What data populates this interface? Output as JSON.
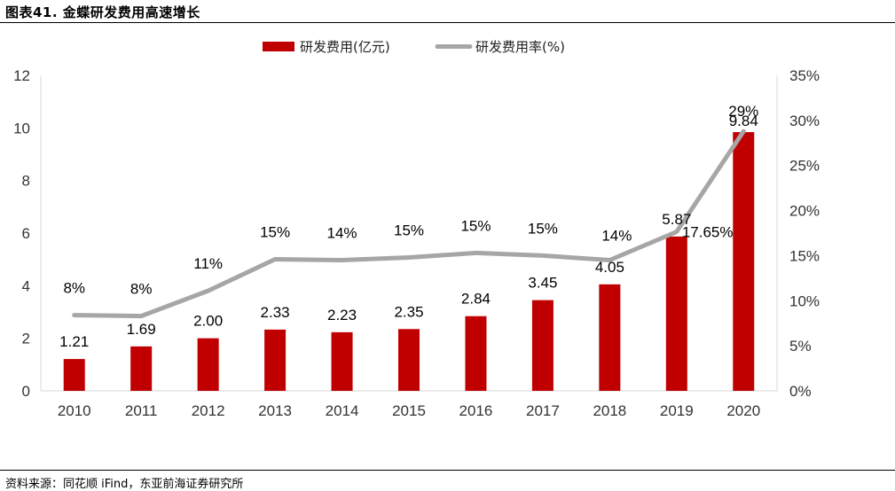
{
  "title": "图表41. 金蝶研发费用高速增长",
  "source": "资料来源：同花顺 iFind，东亚前海证券研究所",
  "colors": {
    "bar": "#C00000",
    "line": "#A6A6A6",
    "axis": "#D9D9D9"
  },
  "chart_data": {
    "type": "bar",
    "categories": [
      "2010",
      "2011",
      "2012",
      "2013",
      "2014",
      "2015",
      "2016",
      "2017",
      "2018",
      "2019",
      "2020"
    ],
    "series": [
      {
        "name": "研发费用(亿元)",
        "type": "bar",
        "axis": "left",
        "values": [
          1.21,
          1.69,
          2.0,
          2.33,
          2.23,
          2.35,
          2.84,
          3.45,
          4.05,
          5.87,
          9.84
        ],
        "labels": [
          "1.21",
          "1.69",
          "2.00",
          "2.33",
          "2.23",
          "2.35",
          "2.84",
          "3.45",
          "4.05",
          "5.87",
          "9.84"
        ]
      },
      {
        "name": "研发费用率(%)",
        "type": "line",
        "axis": "right",
        "values": [
          8.4,
          8.3,
          11.1,
          14.6,
          14.5,
          14.8,
          15.3,
          15.0,
          14.5,
          17.65,
          28.8
        ],
        "labels": [
          "8%",
          "8%",
          "11%",
          "15%",
          "14%",
          "15%",
          "15%",
          "15%",
          "14%",
          "17.65%",
          "29%"
        ]
      }
    ],
    "y_left": {
      "min": 0,
      "max": 12,
      "ticks": [
        "0",
        "2",
        "4",
        "6",
        "8",
        "10",
        "12"
      ]
    },
    "y_right": {
      "min": 0,
      "max": 35,
      "ticks": [
        "0%",
        "5%",
        "10%",
        "15%",
        "20%",
        "25%",
        "30%",
        "35%"
      ]
    },
    "grid": false,
    "legend": "top-center"
  }
}
